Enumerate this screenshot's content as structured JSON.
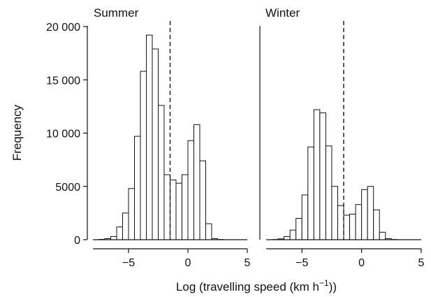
{
  "chart_data": {
    "type": "bar",
    "xlabel": "Log (travelling speed (km h−1))",
    "ylabel": "Frequency",
    "ylim": [
      0,
      20000
    ],
    "yticks": [
      0,
      5000,
      10000,
      15000,
      20000
    ],
    "ytick_labels": [
      "0",
      "5000",
      "10 000",
      "15 000",
      "20 000"
    ],
    "xlim": [
      -8,
      5
    ],
    "xticks": [
      -5,
      0,
      5
    ],
    "xtick_labels": [
      "−5",
      "0",
      "5"
    ],
    "grid": false,
    "shared_y_axis": true,
    "bin_width": 0.5,
    "bin_start": -7.5,
    "threshold_x": -1.5,
    "panels": [
      {
        "title": "Summer",
        "values": [
          30,
          100,
          300,
          1200,
          2500,
          4800,
          9700,
          15800,
          19200,
          17900,
          12600,
          6100,
          5600,
          5300,
          6100,
          9300,
          10800,
          7400,
          1500,
          100,
          20
        ]
      },
      {
        "title": "Winter",
        "values": [
          20,
          80,
          300,
          900,
          2000,
          4200,
          8700,
          12200,
          11900,
          8800,
          5000,
          3200,
          2300,
          2400,
          3300,
          4700,
          5000,
          2800,
          700,
          100,
          20
        ]
      }
    ]
  }
}
